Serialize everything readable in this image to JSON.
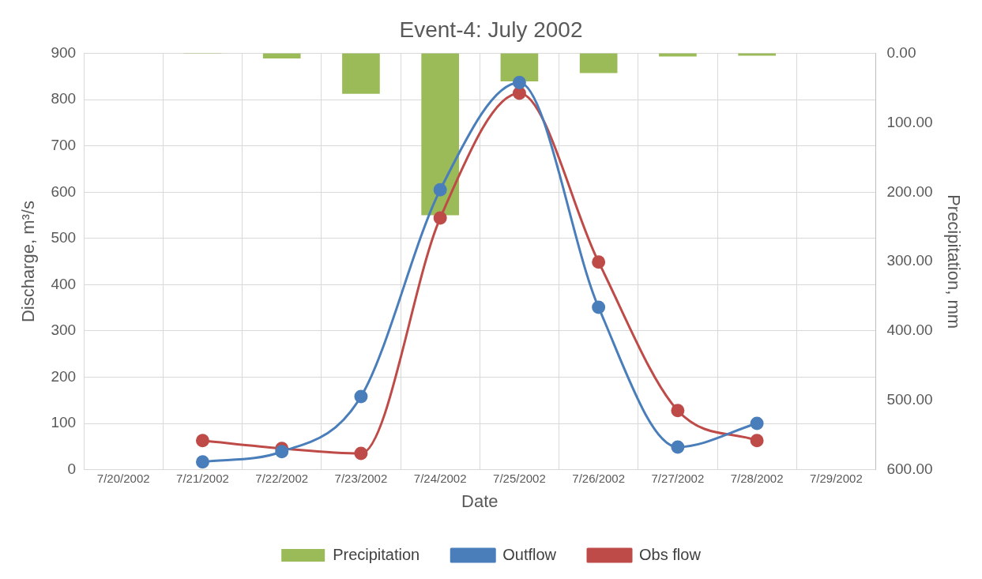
{
  "chart_data": {
    "type": "line",
    "title": "Event-4: July 2002",
    "xlabel": "Date",
    "ylabel": "Discharge, m³/s",
    "y2label": "Precipitation, mm",
    "x": [
      "2002-07-21",
      "2002-07-22",
      "2002-07-23",
      "2002-07-24",
      "2002-07-25",
      "2002-07-26",
      "2002-07-27",
      "2002-07-28"
    ],
    "series": [
      {
        "name": "Precipitation",
        "type": "bar",
        "axis": "y2",
        "color": "#9bbb59",
        "values": [
          0,
          7,
          58,
          233,
          40,
          28,
          4,
          3
        ]
      },
      {
        "name": "Outflow",
        "color": "#4a7ebb",
        "values": [
          17,
          39,
          158,
          605,
          837,
          351,
          49,
          100
        ]
      },
      {
        "name": "Obs flow",
        "color": "#be4b48",
        "values": [
          63,
          46,
          35,
          544,
          814,
          449,
          128,
          63
        ]
      }
    ],
    "xlim": [
      "2002-07-20",
      "2002-07-29"
    ],
    "xticks": [
      {
        "value": "2002-07-20",
        "label": "7/20/2002"
      },
      {
        "value": "2002-07-21",
        "label": "7/21/2002"
      },
      {
        "value": "2002-07-22",
        "label": "7/22/2002"
      },
      {
        "value": "2002-07-23",
        "label": "7/23/2002"
      },
      {
        "value": "2002-07-24",
        "label": "7/24/2002"
      },
      {
        "value": "2002-07-25",
        "label": "7/25/2002"
      },
      {
        "value": "2002-07-26",
        "label": "7/26/2002"
      },
      {
        "value": "2002-07-27",
        "label": "7/27/2002"
      },
      {
        "value": "2002-07-28",
        "label": "7/28/2002"
      },
      {
        "value": "2002-07-29",
        "label": "7/29/2002"
      }
    ],
    "ylim": [
      0,
      900
    ],
    "yticks": [
      0,
      100,
      200,
      300,
      400,
      500,
      600,
      700,
      800,
      900
    ],
    "y2lim": [
      600,
      0
    ],
    "y2ticks": [
      {
        "value": 0,
        "label": "0.00"
      },
      {
        "value": 100,
        "label": "100.00"
      },
      {
        "value": 200,
        "label": "200.00"
      },
      {
        "value": 300,
        "label": "300.00"
      },
      {
        "value": 400,
        "label": "400.00"
      },
      {
        "value": 500,
        "label": "500.00"
      },
      {
        "value": 600,
        "label": "600.00"
      }
    ],
    "grid": true,
    "legend": "bottom",
    "marker": "circle",
    "line_style": "solid"
  }
}
